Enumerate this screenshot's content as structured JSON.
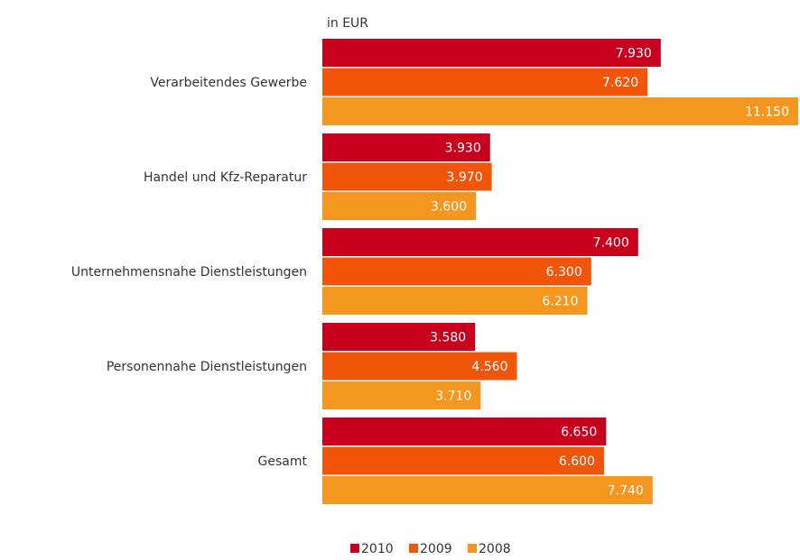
{
  "chart_data": {
    "type": "bar",
    "orientation": "horizontal",
    "unit_label": "in EUR",
    "categories": [
      "Verarbeitendes Gewerbe",
      "Handel und Kfz-Reparatur",
      "Unternehmensnahe Dienstleistungen",
      "Personennahe Dienstleistungen",
      "Gesamt"
    ],
    "series": [
      {
        "name": "2010",
        "color": "#c8001e",
        "values": [
          7930,
          3930,
          7400,
          3580,
          6650
        ],
        "value_labels": [
          "7.930",
          "3.930",
          "7.400",
          "3.580",
          "6.650"
        ]
      },
      {
        "name": "2009",
        "color": "#f0550a",
        "values": [
          7620,
          3970,
          6300,
          4560,
          6600
        ],
        "value_labels": [
          "7.620",
          "3.970",
          "6.300",
          "4.560",
          "6.600"
        ]
      },
      {
        "name": "2008",
        "color": "#f5961e",
        "values": [
          11150,
          3600,
          6210,
          3710,
          7740
        ],
        "value_labels": [
          "11.150",
          "3.600",
          "6.210",
          "3.710",
          "7.740"
        ]
      }
    ],
    "legend": "bottom"
  }
}
